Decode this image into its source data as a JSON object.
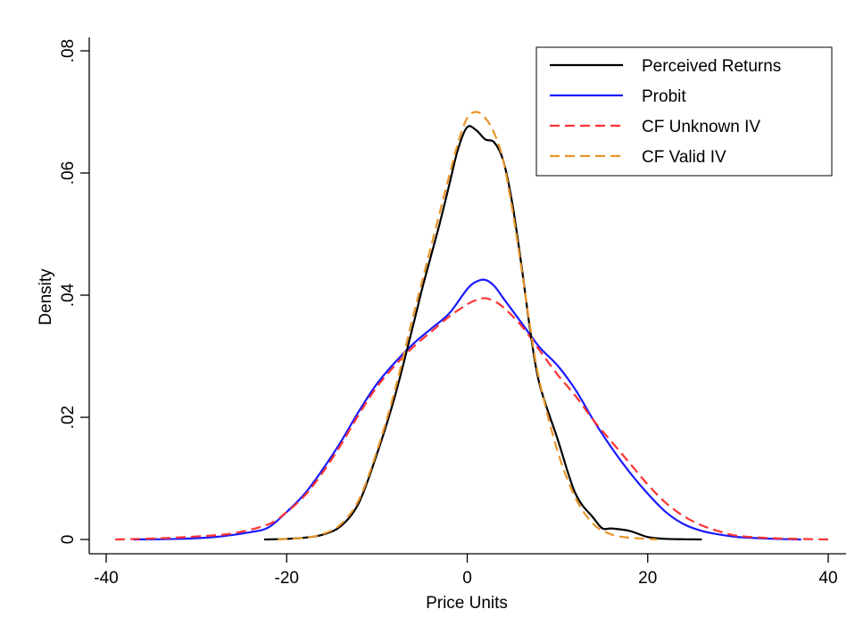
{
  "chart_data": {
    "type": "line",
    "xlabel": "Price Units",
    "ylabel": "Density",
    "xlim": [
      -40,
      40
    ],
    "ylim": [
      0,
      0.08
    ],
    "x_ticks": [
      -40,
      -20,
      0,
      20,
      40
    ],
    "x_tick_labels": [
      "-40",
      "-20",
      "0",
      "20",
      "40"
    ],
    "y_ticks": [
      0,
      0.02,
      0.04,
      0.06,
      0.08
    ],
    "y_tick_labels": [
      "0",
      ".02",
      ".04",
      ".06",
      ".08"
    ],
    "grid": false,
    "legend_position": "top-right",
    "series": [
      {
        "name": "Perceived Returns",
        "color": "#000000",
        "dash": "solid",
        "points": [
          [
            -22.5,
            0
          ],
          [
            -20,
            0.0001
          ],
          [
            -18,
            0.0003
          ],
          [
            -16,
            0.0008
          ],
          [
            -14,
            0.0022
          ],
          [
            -12,
            0.006
          ],
          [
            -10,
            0.014
          ],
          [
            -8,
            0.0235
          ],
          [
            -6,
            0.035
          ],
          [
            -5,
            0.041
          ],
          [
            -4,
            0.0465
          ],
          [
            -3,
            0.052
          ],
          [
            -2,
            0.058
          ],
          [
            -1,
            0.064
          ],
          [
            0,
            0.0675
          ],
          [
            1,
            0.067
          ],
          [
            2,
            0.0655
          ],
          [
            3,
            0.065
          ],
          [
            4,
            0.062
          ],
          [
            5,
            0.055
          ],
          [
            6,
            0.045
          ],
          [
            7,
            0.034
          ],
          [
            8,
            0.0255
          ],
          [
            10,
            0.0165
          ],
          [
            12,
            0.0075
          ],
          [
            14,
            0.0035
          ],
          [
            15,
            0.0018
          ],
          [
            16,
            0.0018
          ],
          [
            18,
            0.0014
          ],
          [
            20,
            0.0004
          ],
          [
            22,
            0.0001
          ],
          [
            26,
            0
          ]
        ]
      },
      {
        "name": "Probit",
        "color": "#1a1aff",
        "dash": "solid",
        "points": [
          [
            -37,
            0
          ],
          [
            -32,
            0.0001
          ],
          [
            -28,
            0.0004
          ],
          [
            -24,
            0.0012
          ],
          [
            -22,
            0.002
          ],
          [
            -20,
            0.0045
          ],
          [
            -18,
            0.0075
          ],
          [
            -16,
            0.0115
          ],
          [
            -14,
            0.016
          ],
          [
            -12,
            0.021
          ],
          [
            -10,
            0.0255
          ],
          [
            -8,
            0.029
          ],
          [
            -6,
            0.032
          ],
          [
            -4,
            0.0345
          ],
          [
            -2,
            0.037
          ],
          [
            0,
            0.041
          ],
          [
            1,
            0.0422
          ],
          [
            2,
            0.0425
          ],
          [
            3,
            0.0415
          ],
          [
            4,
            0.0395
          ],
          [
            6,
            0.0355
          ],
          [
            8,
            0.0315
          ],
          [
            10,
            0.0285
          ],
          [
            12,
            0.0245
          ],
          [
            14,
            0.0195
          ],
          [
            16,
            0.015
          ],
          [
            18,
            0.011
          ],
          [
            20,
            0.0075
          ],
          [
            22,
            0.0045
          ],
          [
            24,
            0.0025
          ],
          [
            26,
            0.0014
          ],
          [
            28,
            0.0008
          ],
          [
            30,
            0.0004
          ],
          [
            34,
            0.0001
          ],
          [
            37,
            0
          ]
        ]
      },
      {
        "name": "CF Unknown IV",
        "color": "#ff3333",
        "dash": "dashed",
        "points": [
          [
            -39,
            0
          ],
          [
            -34,
            0.0002
          ],
          [
            -30,
            0.0005
          ],
          [
            -26,
            0.001
          ],
          [
            -22,
            0.0025
          ],
          [
            -20,
            0.0045
          ],
          [
            -18,
            0.0072
          ],
          [
            -16,
            0.011
          ],
          [
            -14,
            0.0155
          ],
          [
            -12,
            0.0205
          ],
          [
            -10,
            0.025
          ],
          [
            -8,
            0.0285
          ],
          [
            -6,
            0.0315
          ],
          [
            -4,
            0.034
          ],
          [
            -2,
            0.0365
          ],
          [
            0,
            0.0385
          ],
          [
            1,
            0.0392
          ],
          [
            2,
            0.0395
          ],
          [
            3,
            0.039
          ],
          [
            4,
            0.038
          ],
          [
            6,
            0.035
          ],
          [
            8,
            0.031
          ],
          [
            10,
            0.027
          ],
          [
            12,
            0.0235
          ],
          [
            14,
            0.0195
          ],
          [
            16,
            0.016
          ],
          [
            18,
            0.0125
          ],
          [
            20,
            0.009
          ],
          [
            22,
            0.006
          ],
          [
            24,
            0.0038
          ],
          [
            26,
            0.0023
          ],
          [
            28,
            0.0013
          ],
          [
            30,
            0.0006
          ],
          [
            34,
            0.0002
          ],
          [
            40,
            0
          ]
        ]
      },
      {
        "name": "CF Valid IV",
        "color": "#e8952a",
        "dash": "dashed",
        "points": [
          [
            -21,
            0
          ],
          [
            -18,
            0.0003
          ],
          [
            -16,
            0.0009
          ],
          [
            -14,
            0.0025
          ],
          [
            -12,
            0.0065
          ],
          [
            -10,
            0.0145
          ],
          [
            -8,
            0.0245
          ],
          [
            -6,
            0.0365
          ],
          [
            -4,
            0.048
          ],
          [
            -2,
            0.0595
          ],
          [
            -1,
            0.065
          ],
          [
            0,
            0.069
          ],
          [
            1,
            0.07
          ],
          [
            2,
            0.069
          ],
          [
            3,
            0.0665
          ],
          [
            4,
            0.062
          ],
          [
            5,
            0.054
          ],
          [
            6,
            0.0445
          ],
          [
            7,
            0.0345
          ],
          [
            8,
            0.026
          ],
          [
            10,
            0.0145
          ],
          [
            12,
            0.0068
          ],
          [
            14,
            0.0025
          ],
          [
            16,
            0.0008
          ],
          [
            18,
            0.0003
          ],
          [
            21,
            0
          ]
        ]
      }
    ]
  }
}
